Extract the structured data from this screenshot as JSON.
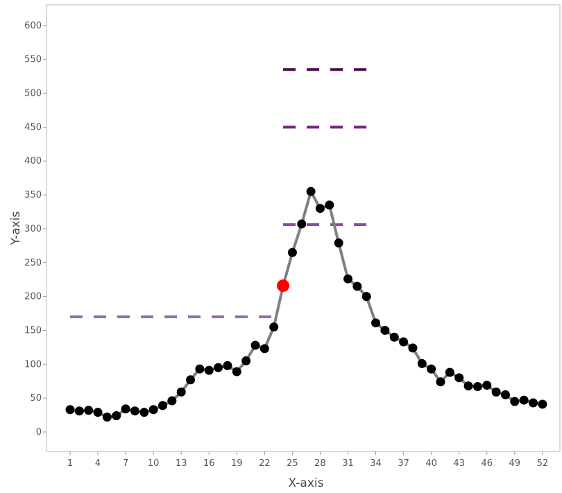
{
  "chart_data": {
    "type": "line",
    "xlabel": "X-axis",
    "ylabel": "Y-axis",
    "xlim": [
      0,
      54
    ],
    "ylim": [
      -30,
      630
    ],
    "xticks": [
      1,
      4,
      7,
      10,
      13,
      16,
      19,
      22,
      25,
      28,
      31,
      34,
      37,
      40,
      43,
      46,
      49,
      52
    ],
    "yticks": [
      0,
      50,
      100,
      150,
      200,
      250,
      300,
      350,
      400,
      450,
      500,
      550,
      600
    ],
    "grid": false,
    "series": [
      {
        "x": [
          1,
          2,
          3,
          4,
          5,
          6,
          7,
          8,
          9,
          10,
          11,
          12,
          13,
          14,
          15,
          16,
          17,
          18,
          19,
          20,
          21,
          22,
          23,
          24,
          25,
          26,
          27,
          28,
          29,
          30,
          31,
          32,
          33,
          34,
          35,
          36,
          37,
          38,
          39,
          40,
          41,
          42,
          43,
          44,
          45,
          46,
          47,
          48,
          49,
          50,
          51,
          52
        ],
        "values": [
          33,
          31,
          32,
          29,
          22,
          24,
          34,
          31,
          29,
          33,
          39,
          46,
          59,
          77,
          93,
          91,
          95,
          98,
          89,
          105,
          128,
          123,
          155,
          216,
          265,
          307,
          355,
          330,
          335,
          279,
          226,
          215,
          200,
          161,
          150,
          140,
          133,
          124,
          101,
          93,
          74,
          88,
          80,
          68,
          67,
          69,
          59,
          55,
          45,
          47,
          43,
          41
        ],
        "color": "#808080",
        "marker_color": "#000000"
      }
    ],
    "highlight_point": {
      "x": 24,
      "y": 216,
      "color": "#ff0000"
    },
    "reference_lines": [
      {
        "x_start": 1,
        "x_end": 23.5,
        "y": 170,
        "color": "#8c6bb1"
      },
      {
        "x_start": 24,
        "x_end": 33,
        "y": 306,
        "color": "#8c49a8"
      },
      {
        "x_start": 24,
        "x_end": 33,
        "y": 450,
        "color": "#7a1f85"
      },
      {
        "x_start": 24,
        "x_end": 33,
        "y": 535,
        "color": "#4d0a4a"
      }
    ]
  }
}
